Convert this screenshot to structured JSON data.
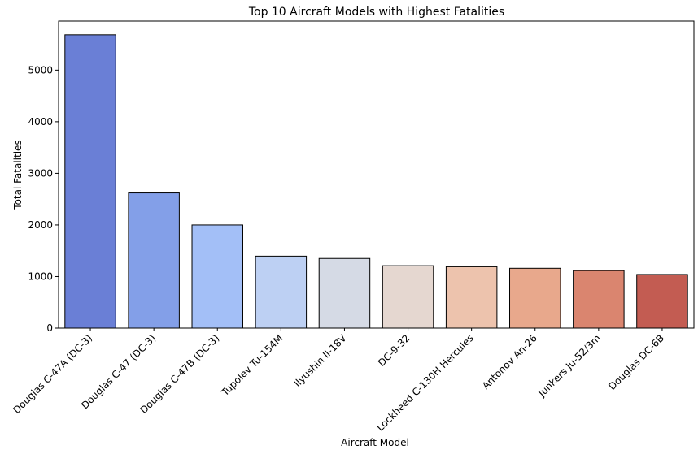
{
  "chart_data": {
    "type": "bar",
    "title": "Top 10 Aircraft Models with Highest Fatalities",
    "xlabel": "Aircraft Model",
    "ylabel": "Total Fatalities",
    "categories": [
      "Douglas C-47A (DC-3)",
      "Douglas C-47 (DC-3)",
      "Douglas C-47B (DC-3)",
      "Tupolev Tu-154M",
      "Ilyushin Il-18V",
      "DC-9-32",
      "Lockheed C-130H Hercules",
      "Antonov An-26",
      "Junkers Ju-52/3m",
      "Douglas DC-6B"
    ],
    "values": [
      5685,
      2620,
      2000,
      1395,
      1350,
      1210,
      1190,
      1160,
      1115,
      1040
    ],
    "colors": [
      "#6a7fd6",
      "#839fe8",
      "#a3bff7",
      "#bdd0f3",
      "#d5dae5",
      "#e5d7d0",
      "#edc3ad",
      "#e8a88c",
      "#da856f",
      "#c35c52"
    ],
    "ylim": [
      0,
      5950
    ],
    "yticks": [
      0,
      1000,
      2000,
      3000,
      4000,
      5000
    ],
    "grid": false,
    "legend": "none"
  }
}
